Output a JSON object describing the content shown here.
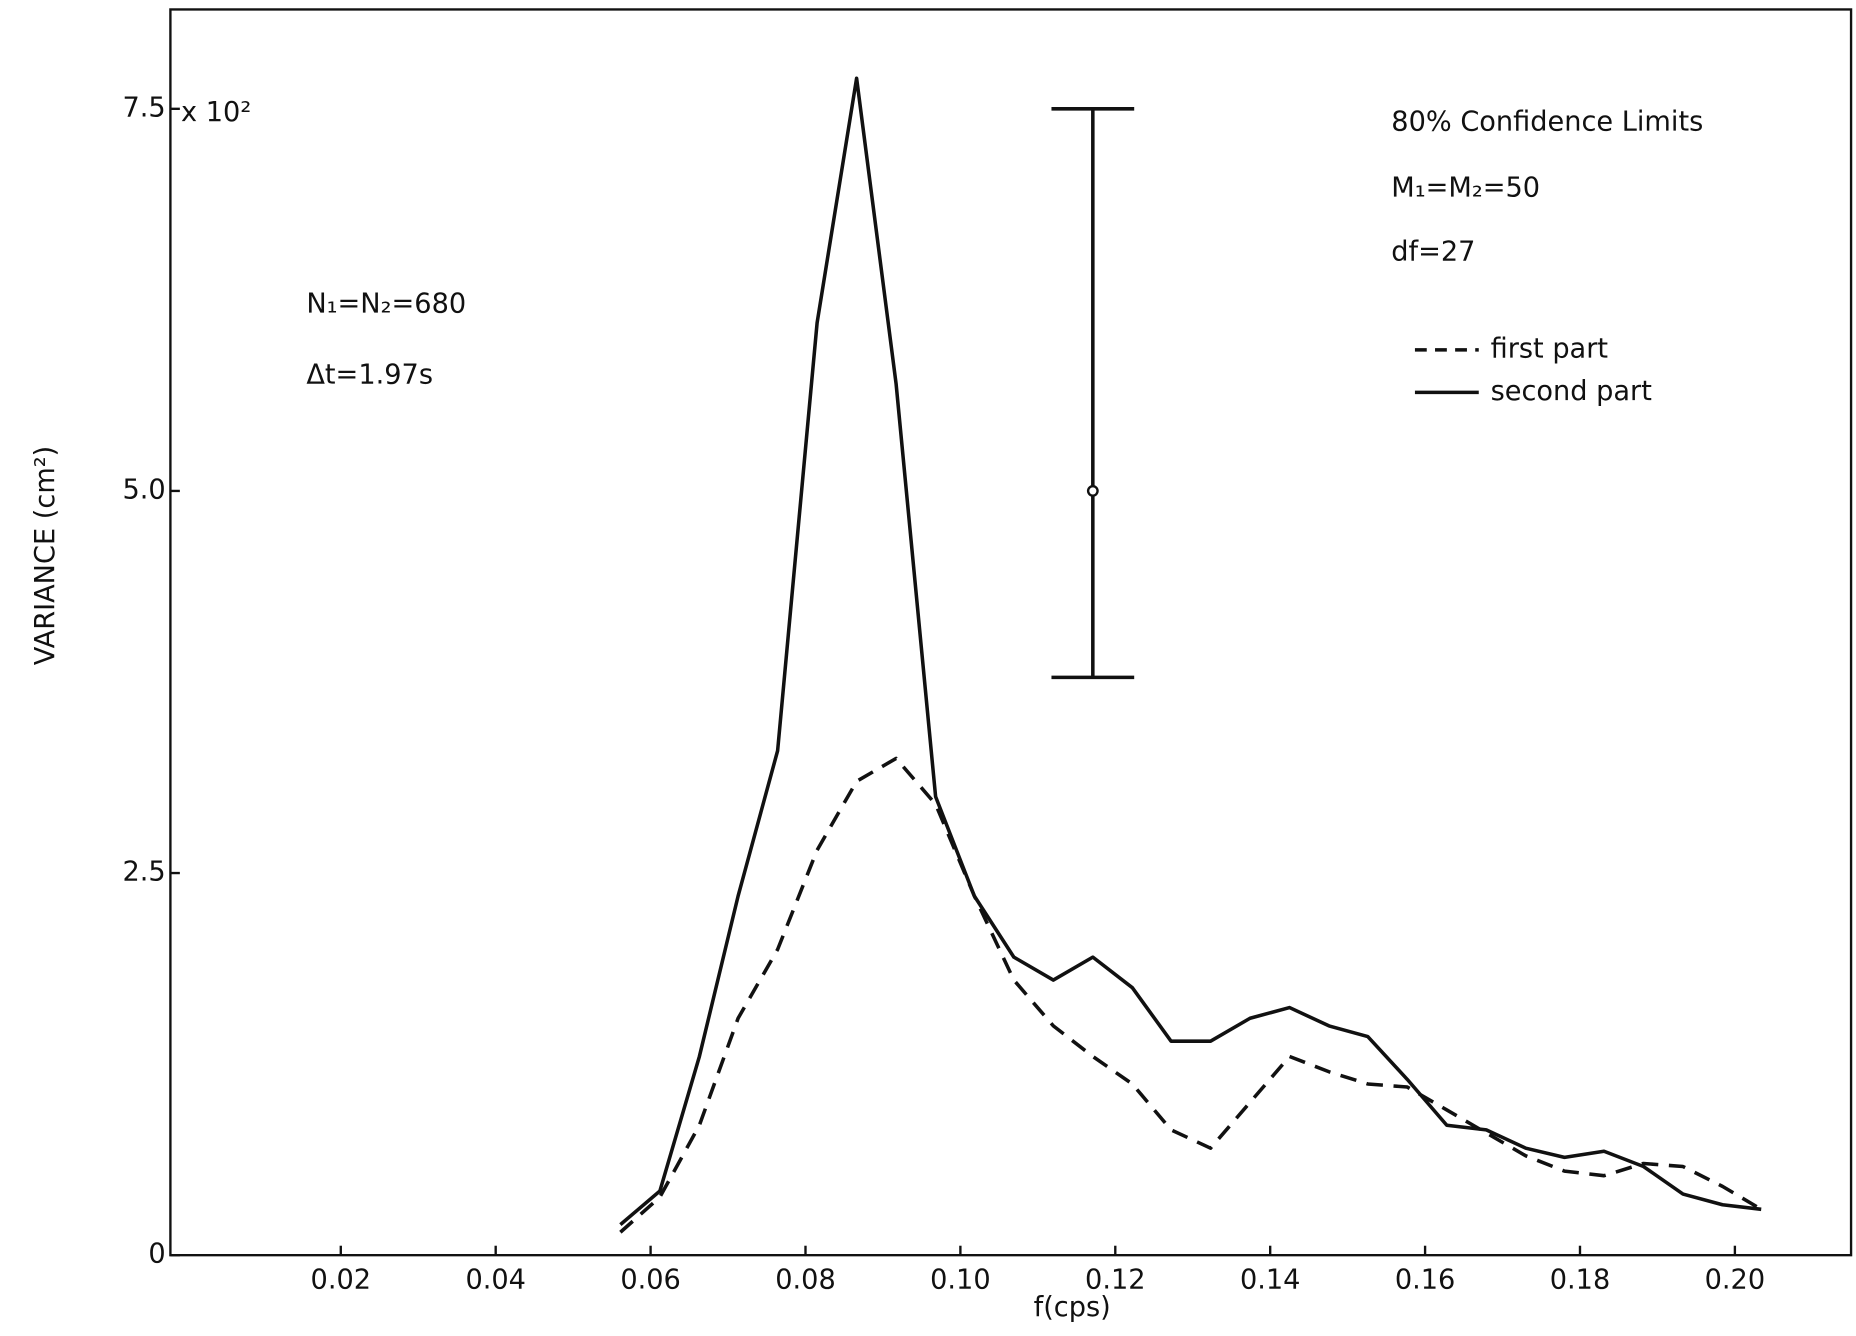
{
  "chart_data": {
    "type": "line",
    "y_label": "VARIANCE (cm²)",
    "y_multiplier": "x 10²",
    "x_label": "f(cps)",
    "x": [
      0.0561,
      0.0612,
      0.0663,
      0.0713,
      0.0764,
      0.0815,
      0.0866,
      0.0917,
      0.0968,
      0.1018,
      0.1069,
      0.112,
      0.1171,
      0.1222,
      0.1272,
      0.1323,
      0.1374,
      0.1425,
      0.1476,
      0.1526,
      0.1577,
      0.1628,
      0.1679,
      0.173,
      0.178,
      0.1831,
      0.1882,
      0.1933,
      0.1984,
      0.2034
    ],
    "series": [
      {
        "name": "first part",
        "color": "#111111",
        "dash": "dashed",
        "values": [
          0.15,
          0.38,
          0.85,
          1.55,
          2.0,
          2.65,
          3.1,
          3.25,
          2.95,
          2.35,
          1.8,
          1.5,
          1.3,
          1.12,
          0.82,
          0.7,
          1.0,
          1.3,
          1.2,
          1.12,
          1.1,
          0.95,
          0.8,
          0.65,
          0.55,
          0.52,
          0.6,
          0.58,
          0.45,
          0.3
        ]
      },
      {
        "name": "second part",
        "color": "#111111",
        "dash": "solid",
        "values": [
          0.2,
          0.42,
          1.3,
          2.35,
          3.3,
          6.1,
          7.7,
          5.7,
          3.0,
          2.35,
          1.95,
          1.8,
          1.95,
          1.75,
          1.4,
          1.4,
          1.55,
          1.62,
          1.5,
          1.43,
          1.15,
          0.85,
          0.82,
          0.7,
          0.64,
          0.68,
          0.58,
          0.4,
          0.33,
          0.3
        ]
      }
    ],
    "confidence_interval": {
      "x": 0.1171,
      "low": 3.78,
      "center": 5.0,
      "high": 7.5
    },
    "annotations": [
      "80% Confidence Limits",
      "M₁=M₂=50",
      "df=27",
      "N₁=N₂=680",
      "Δt=1.97s"
    ],
    "xlim": [
      -0.002,
      0.215
    ],
    "ylim": [
      0,
      8.15
    ],
    "xticks": [
      0.02,
      0.04,
      0.06,
      0.08,
      {
        "value": 0.1,
        "label": "0.10"
      },
      0.12,
      0.14,
      0.16,
      0.18,
      {
        "value": 0.2,
        "label": "0.20"
      }
    ],
    "yticks": [
      0,
      2.5,
      {
        "value": 5,
        "label": "5.0"
      },
      7.5
    ],
    "grid": false,
    "legend": "upper right"
  }
}
